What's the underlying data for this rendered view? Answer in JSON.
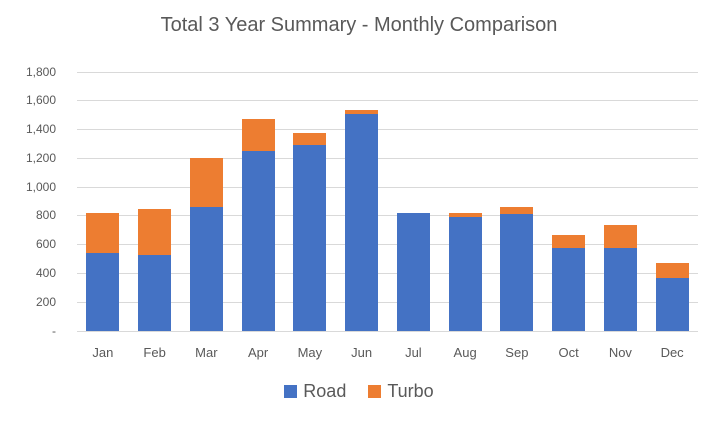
{
  "chart_data": {
    "type": "bar",
    "stacked": true,
    "title": "Total 3 Year Summary - Monthly Comparison",
    "categories": [
      "Jan",
      "Feb",
      "Mar",
      "Apr",
      "May",
      "Jun",
      "Jul",
      "Aug",
      "Sep",
      "Oct",
      "Nov",
      "Dec"
    ],
    "series": [
      {
        "name": "Road",
        "color": "#4472C4",
        "values": [
          540,
          525,
          860,
          1250,
          1290,
          1505,
          820,
          795,
          810,
          575,
          575,
          365
        ]
      },
      {
        "name": "Turbo",
        "color": "#ED7D31",
        "values": [
          280,
          320,
          345,
          225,
          85,
          30,
          0,
          25,
          50,
          95,
          160,
          105
        ]
      }
    ],
    "totals": [
      820,
      845,
      1205,
      1475,
      1375,
      1535,
      820,
      820,
      860,
      670,
      735,
      470
    ],
    "xlabel": "",
    "ylabel": "",
    "ylim": [
      0,
      1800
    ],
    "ytick_step": 200,
    "ytick_labels_bottom_to_top": [
      "-",
      "200",
      "400",
      "600",
      "800",
      "1,000",
      "1,200",
      "1,400",
      "1,600",
      "1,800"
    ],
    "grid": true,
    "legend_position": "bottom",
    "colors": {
      "title_text": "#595959",
      "axis_text": "#595959",
      "gridline": "#D9D9D9",
      "background": "#FFFFFF"
    }
  }
}
